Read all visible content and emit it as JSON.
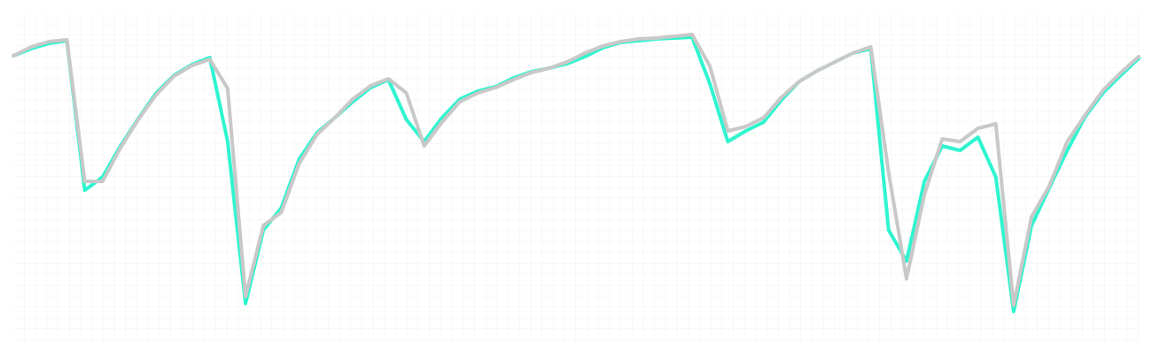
{
  "chart_data": {
    "type": "line",
    "ylim": [
      0,
      370
    ],
    "grid": true,
    "series": [
      {
        "color": "#2ef5d0",
        "values": [
          322,
          330,
          336,
          339,
          170,
          185,
          220,
          251,
          280,
          300,
          312,
          320,
          225,
          42,
          125,
          150,
          205,
          235,
          252,
          270,
          286,
          295,
          250,
          225,
          252,
          273,
          282,
          287,
          297,
          304,
          308,
          313,
          321,
          331,
          337,
          339,
          341,
          342,
          343,
          290,
          225,
          237,
          247,
          272,
          293,
          305,
          315,
          325,
          330,
          125,
          90,
          180,
          220,
          215,
          230,
          185,
          33,
          130,
          173,
          215,
          253,
          280,
          300,
          319
        ]
      },
      {
        "color": "#c8c8c8",
        "values": [
          322,
          332,
          338,
          340,
          180,
          180,
          218,
          250,
          278,
          299,
          311,
          318,
          285,
          50,
          130,
          145,
          200,
          233,
          252,
          273,
          288,
          296,
          280,
          220,
          247,
          270,
          280,
          286,
          295,
          303,
          308,
          315,
          325,
          333,
          338,
          341,
          342,
          344,
          346,
          310,
          237,
          242,
          252,
          275,
          293,
          305,
          315,
          325,
          332,
          190,
          70,
          165,
          228,
          225,
          240,
          245,
          40,
          140,
          175,
          225,
          255,
          283,
          303,
          321
        ]
      }
    ]
  }
}
